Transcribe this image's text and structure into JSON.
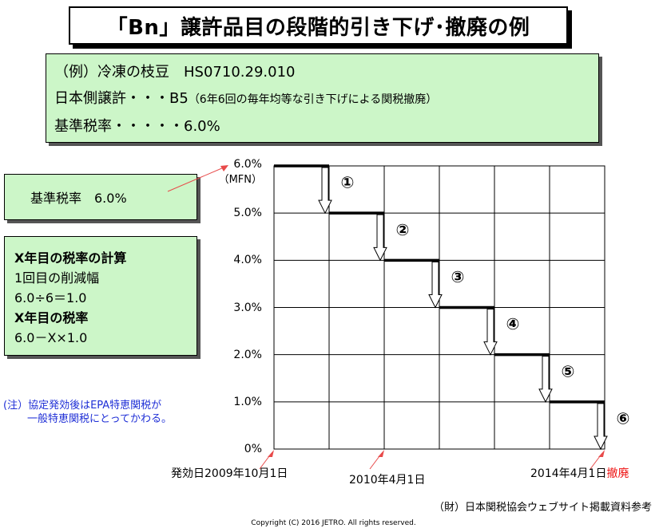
{
  "title": "「Bn」譲許品目の段階的引き下げ･撤廃の例",
  "example": {
    "line1": "（例）冷凍の枝豆　HS0710.29.010",
    "line2_main": "日本側譲許・・・B5",
    "line2_note": "（6年6回の毎年均等な引き下げによる関税撤廃）",
    "line3": "基準税率・・・・・6.0%"
  },
  "base_rate_box": "基準税率　6.0%",
  "calc_box": {
    "l1": "X年目の税率の計算",
    "l2": "1回目の削減幅",
    "l3": "6.0÷6＝1.0",
    "l4": "X年目の税率",
    "l5": "6.0－X×1.0"
  },
  "note": {
    "l1": "(注）協定発効後はEPA特恵関税が",
    "l2": "一般特恵関税にとってかわる。"
  },
  "source": "（財）日本関税協会ウェブサイト掲載資料参考",
  "copyright": "Copyright (C) 2016 JETRO. All rights reserved.",
  "chart_data": {
    "type": "line",
    "step": true,
    "y_tick_labels": [
      "0%",
      "1.0%",
      "2.0%",
      "3.0%",
      "4.0%",
      "5.0%",
      "6.0%"
    ],
    "y_top_sublabel": "（MFN）",
    "ylim": [
      0,
      6
    ],
    "periods": [
      0,
      1,
      2,
      3,
      4,
      5,
      6
    ],
    "values": [
      6,
      5,
      4,
      3,
      2,
      1,
      0
    ],
    "step_labels": [
      "①",
      "②",
      "③",
      "④",
      "⑤",
      "⑥"
    ],
    "date_labels": {
      "start": "発効日2009年10月1日",
      "second": "2010年4月1日",
      "end": "2014年4月1日",
      "end_suffix": "撤廃"
    },
    "grid": true,
    "colors": {
      "abolish": "#e11111",
      "pointer": "#e84a4a"
    }
  }
}
